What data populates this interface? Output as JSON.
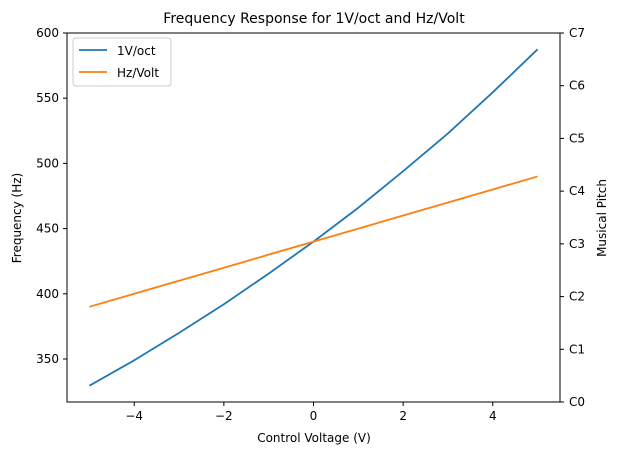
{
  "chart_data": {
    "type": "line",
    "title": "Frequency Response for 1V/oct and Hz/Volt",
    "xlabel": "Control Voltage (V)",
    "ylabel": "Frequency (Hz)",
    "y2label": "Musical Pitch",
    "xlim": [
      -5.5,
      5.5
    ],
    "ylim": [
      317,
      600
    ],
    "xticks": [
      -4,
      -2,
      0,
      2,
      4
    ],
    "xtick_labels": [
      "−4",
      "−2",
      "0",
      "2",
      "4"
    ],
    "yticks": [
      350,
      400,
      450,
      500,
      550,
      600
    ],
    "y2ticks": [
      "C0",
      "C1",
      "C2",
      "C3",
      "C4",
      "C5",
      "C6",
      "C7"
    ],
    "legend_position": "top-left",
    "grid": false,
    "x": [
      -5,
      -4,
      -3,
      -2,
      -1,
      0,
      1,
      2,
      3,
      4,
      5
    ],
    "series": [
      {
        "name": "1V/oct",
        "color": "#1f77b4",
        "values": [
          329.5,
          349.0,
          370.0,
          392.0,
          415.5,
          440.0,
          466.0,
          494.0,
          523.0,
          554.5,
          587.5
        ]
      },
      {
        "name": "Hz/Volt",
        "color": "#ff7f0e",
        "values": [
          390,
          400,
          410,
          420,
          430,
          440,
          450,
          460,
          470,
          480,
          490
        ]
      }
    ]
  }
}
